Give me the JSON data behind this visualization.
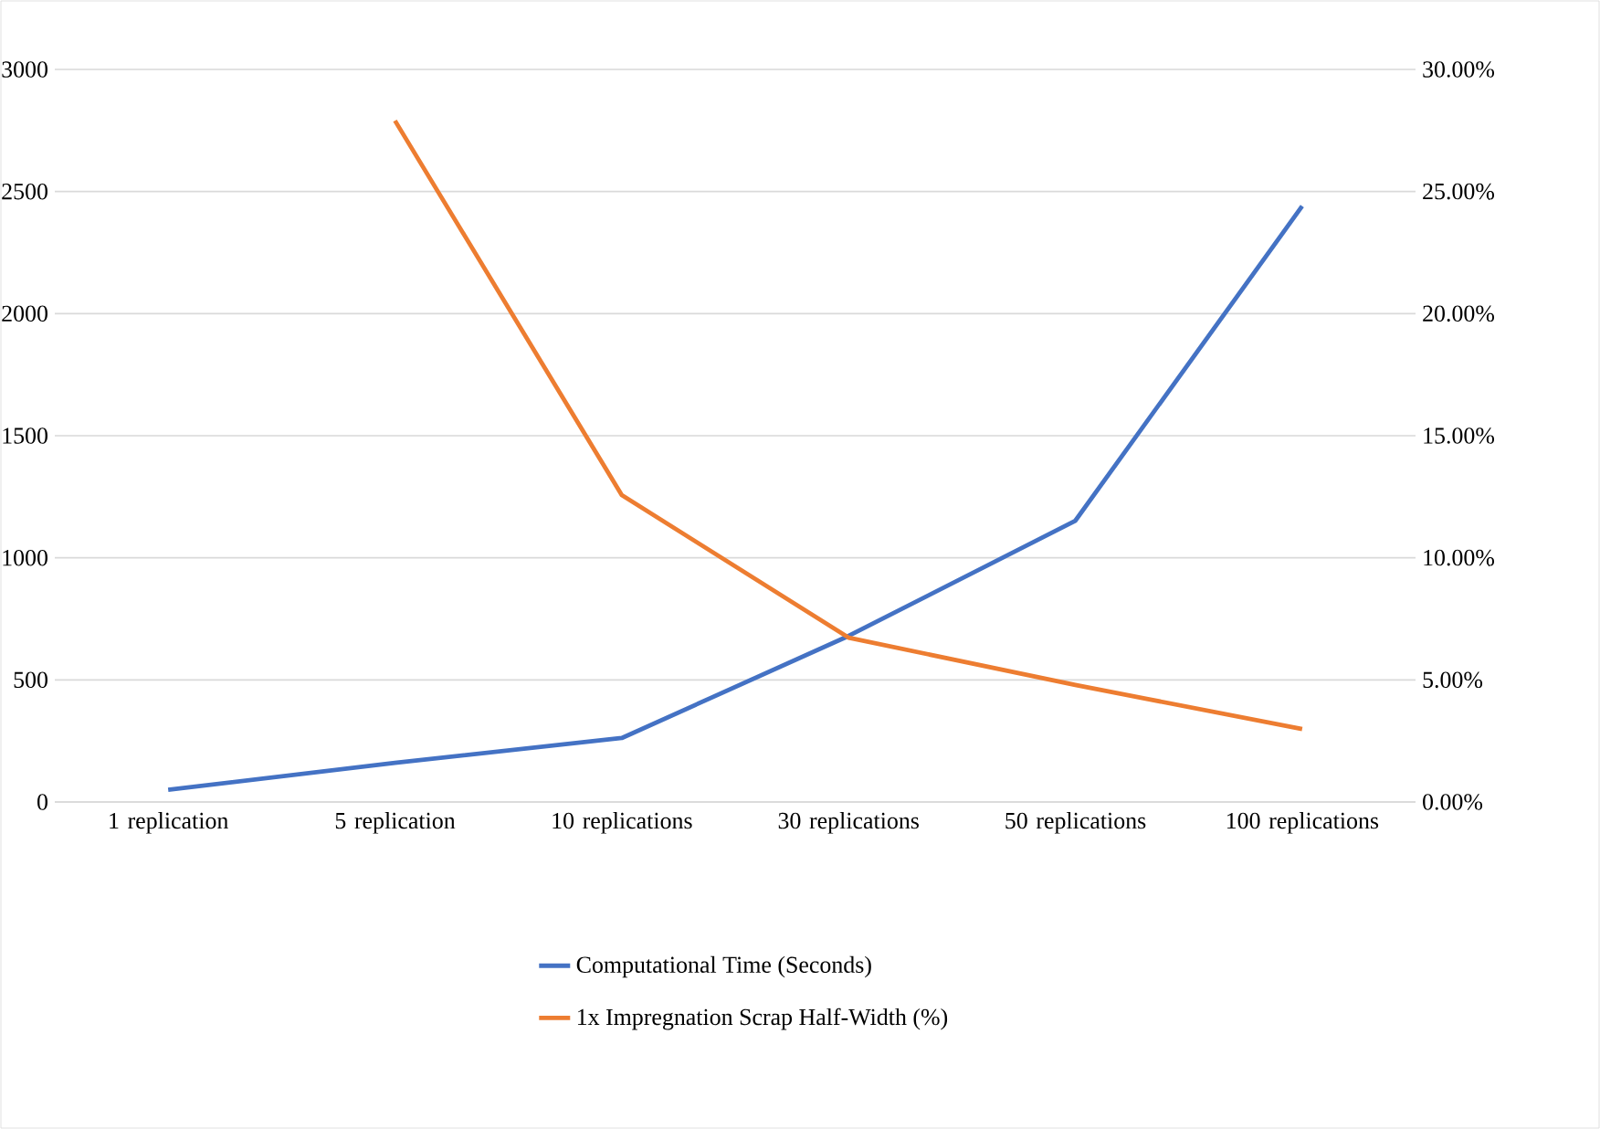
{
  "chart_data": {
    "type": "line",
    "categories": [
      "1 replication",
      "5 replication",
      "10 replications",
      "30 replications",
      "50 replications",
      "100 replications"
    ],
    "series": [
      {
        "name": "Computational Time (Seconds)",
        "color": "#4472c4",
        "values": [
          50,
          160,
          262,
          680,
          1152,
          2440
        ]
      },
      {
        "name": "1x Impregnation Scrap Half-Width (%)",
        "color": "#ed7d31",
        "axis": "y2",
        "values": [
          null,
          27.9,
          12.57,
          6.73,
          4.79,
          2.99
        ]
      }
    ],
    "ylim": [
      0,
      3000
    ],
    "yticks": [
      0,
      500,
      1000,
      1500,
      2000,
      2500,
      3000
    ],
    "y2lim": [
      0,
      30
    ],
    "y2ticks": [
      {
        "value": 0,
        "label": "0.00%"
      },
      {
        "value": 5,
        "label": "5.00%"
      },
      {
        "value": 10,
        "label": "10.00%"
      },
      {
        "value": 15,
        "label": "15.00%"
      },
      {
        "value": 20,
        "label": "20.00%"
      },
      {
        "value": 25,
        "label": "25.00%"
      },
      {
        "value": 30,
        "label": "30.00%"
      }
    ],
    "grid": "y",
    "legend": "bottom",
    "marker": "none",
    "line_style": "solid"
  }
}
